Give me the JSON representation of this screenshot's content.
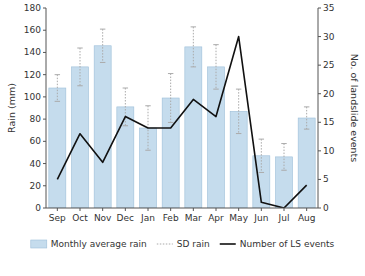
{
  "chart_data": {
    "type": "bar",
    "categories": [
      "Sep",
      "Oct",
      "Nov",
      "Dec",
      "Jan",
      "Feb",
      "Mar",
      "Apr",
      "May",
      "Jun",
      "Jul",
      "Aug"
    ],
    "series": [
      {
        "name": "Monthly average rain",
        "type": "bar",
        "color": "#c5dced",
        "values": [
          108,
          127,
          146,
          91,
          72,
          99,
          145,
          127,
          87,
          47,
          46,
          81
        ],
        "errors": {
          "name": "SD rain",
          "color": "#aaaaaa",
          "line_style": "dotted",
          "values": [
            12,
            17,
            15,
            17,
            20,
            22,
            18,
            20,
            20,
            15,
            12,
            10
          ]
        }
      },
      {
        "name": "Number of LS events",
        "type": "line",
        "color": "#111111",
        "axis": "y2",
        "values": [
          5,
          13,
          8,
          16,
          14,
          14,
          19,
          16,
          30,
          1,
          0,
          4
        ]
      }
    ],
    "ylabel": "Rain (mm)",
    "y2label": "No. of landslide events",
    "ylim": [
      0,
      180
    ],
    "yticks": [
      0,
      20,
      40,
      60,
      80,
      100,
      120,
      140,
      160,
      180
    ],
    "y2lim": [
      0,
      35
    ],
    "y2ticks": [
      0,
      5,
      10,
      15,
      20,
      25,
      30,
      35
    ],
    "grid": false,
    "legend": "bottom"
  }
}
